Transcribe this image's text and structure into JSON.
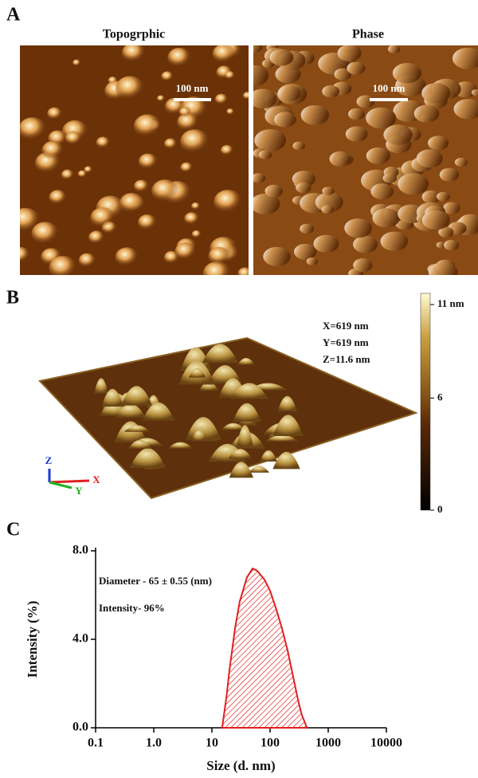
{
  "panels": {
    "a": {
      "label": "A",
      "left_title": "Topogrphic",
      "right_title": "Phase",
      "left_scale": "100 nm",
      "right_scale": "100 nm"
    },
    "b": {
      "label": "B",
      "dims": [
        "X=619 nm",
        "Y=619 nm",
        "Z=11.6 nm"
      ],
      "axes": [
        "Z",
        "X",
        "Y"
      ],
      "colorbar": {
        "lim": [
          0,
          11.6
        ],
        "ticks": [
          {
            "value": 11,
            "label": "11 nm"
          },
          6,
          0
        ]
      }
    },
    "c": {
      "label": "C"
    }
  },
  "chart_data": {
    "type": "area",
    "xlabel": "Size (d. nm)",
    "ylabel": "Intensity (%)",
    "annotations": [
      "Diameter - 65 ± 0.55 (nm)",
      "Intensity- 96%"
    ],
    "log_x": true,
    "color": "#e02020",
    "x": [
      15,
      18,
      20,
      25,
      30,
      40,
      50,
      60,
      80,
      100,
      130,
      160,
      200,
      250,
      300,
      350,
      430
    ],
    "values": [
      0,
      1.5,
      2.6,
      4.5,
      5.7,
      6.8,
      7.2,
      7.1,
      6.7,
      6.2,
      5.3,
      4.5,
      3.5,
      2.3,
      1.3,
      0.6,
      0
    ],
    "xlim": [
      0.1,
      10000
    ],
    "xticks": [
      0.1,
      {
        "value": 1,
        "label": "1.0"
      },
      10,
      100,
      1000,
      10000
    ],
    "ylim": [
      0,
      8
    ],
    "yticks": [
      {
        "value": 0,
        "label": "0.0"
      },
      {
        "value": 4,
        "label": "4.0"
      },
      {
        "value": 8,
        "label": "8.0"
      }
    ]
  }
}
